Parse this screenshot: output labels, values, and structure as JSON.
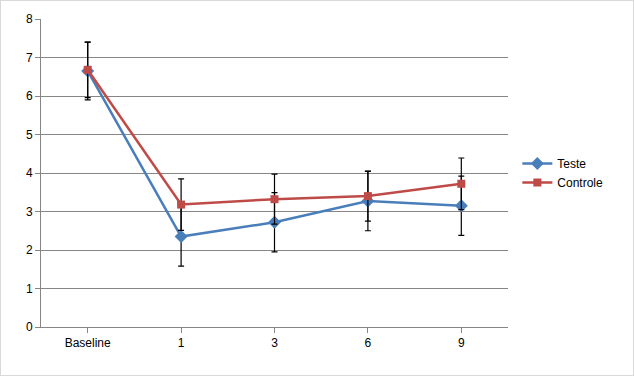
{
  "chart_data": {
    "type": "line",
    "categories": [
      "Baseline",
      "1",
      "3",
      "6",
      "9"
    ],
    "series": [
      {
        "name": "Teste",
        "color": "#4a7ebb",
        "marker": "diamond",
        "line_style": "solid",
        "values": [
          6.65,
          2.35,
          2.72,
          3.27,
          3.15
        ],
        "error": [
          0.75,
          0.77,
          0.77,
          0.77,
          0.77
        ]
      },
      {
        "name": "Controle",
        "color": "#be4b48",
        "marker": "square",
        "line_style": "solid",
        "values": [
          6.68,
          3.18,
          3.32,
          3.4,
          3.72
        ],
        "error": [
          0.72,
          0.67,
          0.65,
          0.65,
          0.67
        ]
      }
    ],
    "ylim": [
      0,
      8
    ],
    "yticks": [
      0,
      1,
      2,
      3,
      4,
      5,
      6,
      7,
      8
    ],
    "grid": true,
    "legend": "right"
  }
}
